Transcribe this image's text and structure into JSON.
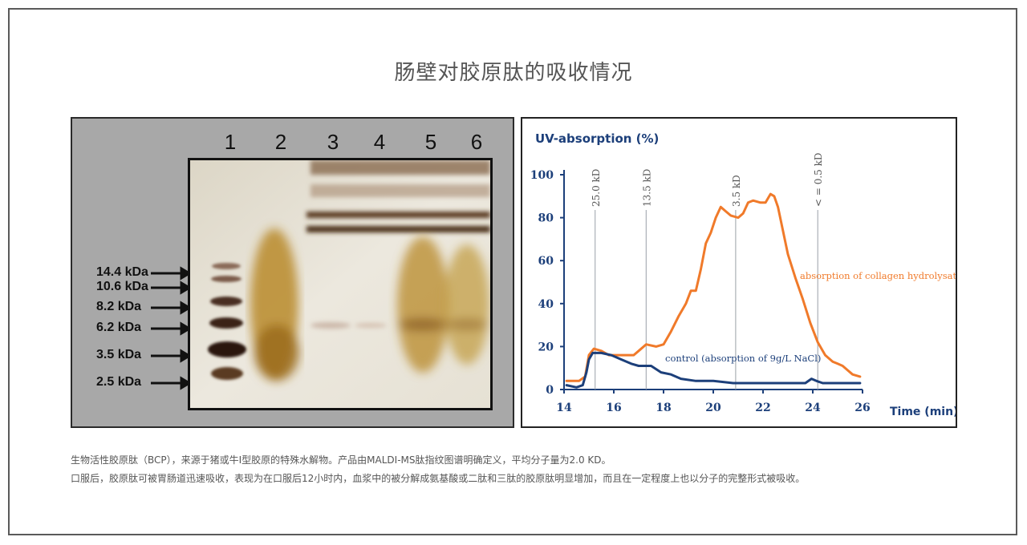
{
  "page": {
    "title": "肠壁对胶原肽的吸收情况",
    "caption_line1": "生物活性胶原肽（BCP），来源于猪或牛I型胶原的特殊水解物。产品由MALDI-MS肽指纹图谱明确定义，平均分子量为2.0 KD。",
    "caption_line2": "口服后，胶原肽可被胃肠道迅速吸收，表现为在口服后12小时内，血浆中的被分解成氨基酸或二肽和三肽的胶原肽明显增加，而且在一定程度上也以分子的完整形式被吸收。"
  },
  "gel": {
    "lanes": [
      "1",
      "2",
      "3",
      "4",
      "5",
      "6"
    ],
    "markers": [
      "14.4 kDa",
      "10.6 kDa",
      "8.2 kDa",
      "6.2 kDa",
      "3.5 kDa",
      "2.5 kDa"
    ]
  },
  "chart_data": {
    "type": "line",
    "ylabel": "UV-absorption (%)",
    "xlabel": "Time (min)",
    "xlim": [
      14,
      26
    ],
    "ylim": [
      0,
      100
    ],
    "xticks": [
      14,
      16,
      18,
      20,
      22,
      24,
      26
    ],
    "yticks": [
      0,
      20,
      40,
      60,
      80,
      100
    ],
    "grid": false,
    "markers_lines": [
      {
        "x": 15.25,
        "label": "25.0 kD"
      },
      {
        "x": 17.3,
        "label": "13.5 kD"
      },
      {
        "x": 20.9,
        "label": "3.5 kD"
      },
      {
        "x": 24.2,
        "label": "< = 0.5 kD"
      }
    ],
    "series": [
      {
        "name": "absorption of collagen hydrolysate",
        "color": "#f07a2a",
        "points": [
          [
            14.1,
            4
          ],
          [
            14.6,
            4
          ],
          [
            14.85,
            6
          ],
          [
            15.0,
            16
          ],
          [
            15.2,
            19
          ],
          [
            15.5,
            18
          ],
          [
            15.8,
            16
          ],
          [
            16.3,
            16
          ],
          [
            16.8,
            16
          ],
          [
            17.0,
            18
          ],
          [
            17.3,
            21
          ],
          [
            17.7,
            20
          ],
          [
            18.0,
            21
          ],
          [
            18.3,
            27
          ],
          [
            18.6,
            34
          ],
          [
            18.9,
            40
          ],
          [
            19.1,
            46
          ],
          [
            19.3,
            46
          ],
          [
            19.5,
            56
          ],
          [
            19.7,
            68
          ],
          [
            19.9,
            73
          ],
          [
            20.1,
            80
          ],
          [
            20.3,
            85
          ],
          [
            20.5,
            83
          ],
          [
            20.7,
            81
          ],
          [
            21.0,
            80
          ],
          [
            21.2,
            82
          ],
          [
            21.4,
            87
          ],
          [
            21.6,
            88
          ],
          [
            21.9,
            87
          ],
          [
            22.1,
            87
          ],
          [
            22.3,
            91
          ],
          [
            22.45,
            90
          ],
          [
            22.6,
            85
          ],
          [
            22.8,
            74
          ],
          [
            23.0,
            63
          ],
          [
            23.3,
            52
          ],
          [
            23.6,
            42
          ],
          [
            23.9,
            31
          ],
          [
            24.2,
            22
          ],
          [
            24.5,
            16
          ],
          [
            24.8,
            13
          ],
          [
            25.0,
            12
          ],
          [
            25.2,
            11
          ],
          [
            25.4,
            9
          ],
          [
            25.6,
            7
          ],
          [
            25.9,
            6
          ]
        ]
      },
      {
        "name": "control (absorption of 9g/L NaCl)",
        "color": "#1c3f7a",
        "points": [
          [
            14.1,
            2
          ],
          [
            14.5,
            1
          ],
          [
            14.75,
            2
          ],
          [
            14.9,
            8
          ],
          [
            15.0,
            14
          ],
          [
            15.15,
            17
          ],
          [
            15.5,
            17
          ],
          [
            15.9,
            16
          ],
          [
            16.3,
            14
          ],
          [
            16.7,
            12
          ],
          [
            17.0,
            11
          ],
          [
            17.5,
            11
          ],
          [
            17.9,
            8
          ],
          [
            18.3,
            7
          ],
          [
            18.7,
            5
          ],
          [
            19.3,
            4
          ],
          [
            20.0,
            4
          ],
          [
            20.8,
            3
          ],
          [
            21.5,
            3
          ],
          [
            22.2,
            3
          ],
          [
            23.0,
            3
          ],
          [
            23.7,
            3
          ],
          [
            23.95,
            5
          ],
          [
            24.15,
            4
          ],
          [
            24.4,
            3
          ],
          [
            25.0,
            3
          ],
          [
            25.5,
            3
          ],
          [
            25.9,
            3
          ]
        ]
      }
    ]
  }
}
